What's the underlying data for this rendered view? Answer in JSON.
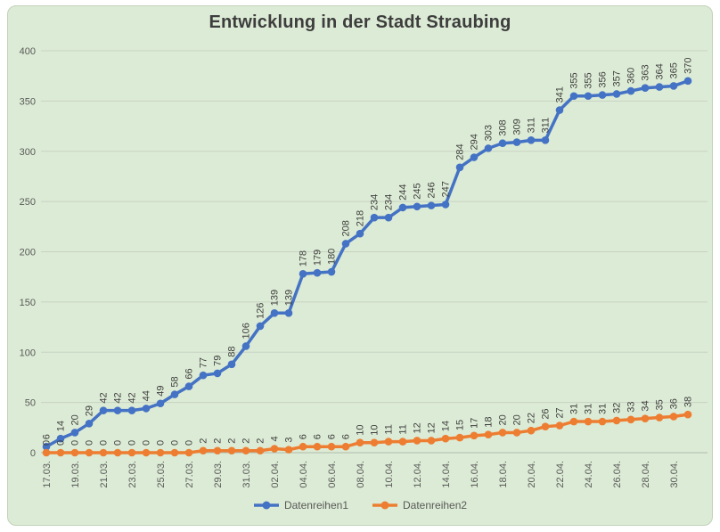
{
  "title": "Entwicklung in der Stadt Straubing",
  "legend": {
    "series1": "Datenreihen1",
    "series2": "Datenreihen2"
  },
  "colors": {
    "background": "#dcebd5",
    "panel_border": "#c3d2bb",
    "grid": "#c8d3c3",
    "axis_line": "#aebbaa",
    "axis_text": "#595959",
    "label_text": "#3f3f3f",
    "title_text": "#3d3d3d",
    "series1": "#4472c4",
    "series2": "#ed7d31"
  },
  "chart_data": {
    "type": "line",
    "title": "Entwicklung in der Stadt Straubing",
    "xlabel": "",
    "ylabel": "",
    "ylim": [
      0,
      400
    ],
    "y_ticks": [
      0,
      50,
      100,
      150,
      200,
      250,
      300,
      350,
      400
    ],
    "grid": "horizontal",
    "legend_position": "bottom",
    "data_labels": "rotated-above-points",
    "x_tick_interval": 2,
    "x_tick_labels": [
      "17.03.",
      "19.03.",
      "21.03.",
      "23.03.",
      "25.03.",
      "27.03.",
      "29.03.",
      "31.03.",
      "02.04.",
      "04.04.",
      "06.04.",
      "08.04.",
      "10.04.",
      "12.04.",
      "14.04.",
      "16.04.",
      "18.04.",
      "20.04.",
      "22.04.",
      "24.04.",
      "26.04.",
      "28.04.",
      "30.04."
    ],
    "series": [
      {
        "name": "Datenreihen1",
        "color": "#4472c4",
        "values": [
          6,
          14,
          20,
          29,
          42,
          42,
          42,
          44,
          49,
          58,
          66,
          77,
          79,
          88,
          106,
          126,
          139,
          139,
          178,
          179,
          180,
          208,
          218,
          234,
          234,
          244,
          245,
          246,
          247,
          284,
          294,
          303,
          308,
          309,
          311,
          311,
          341,
          355,
          355,
          356,
          357,
          360,
          363,
          364,
          365,
          370
        ]
      },
      {
        "name": "Datenreihen2",
        "color": "#ed7d31",
        "values": [
          0,
          0,
          0,
          0,
          0,
          0,
          0,
          0,
          0,
          0,
          0,
          2,
          2,
          2,
          2,
          2,
          4,
          3,
          6,
          6,
          6,
          6,
          10,
          10,
          11,
          11,
          12,
          12,
          14,
          15,
          17,
          18,
          20,
          20,
          22,
          26,
          27,
          31,
          31,
          31,
          32,
          33,
          34,
          35,
          36,
          38
        ]
      }
    ]
  }
}
